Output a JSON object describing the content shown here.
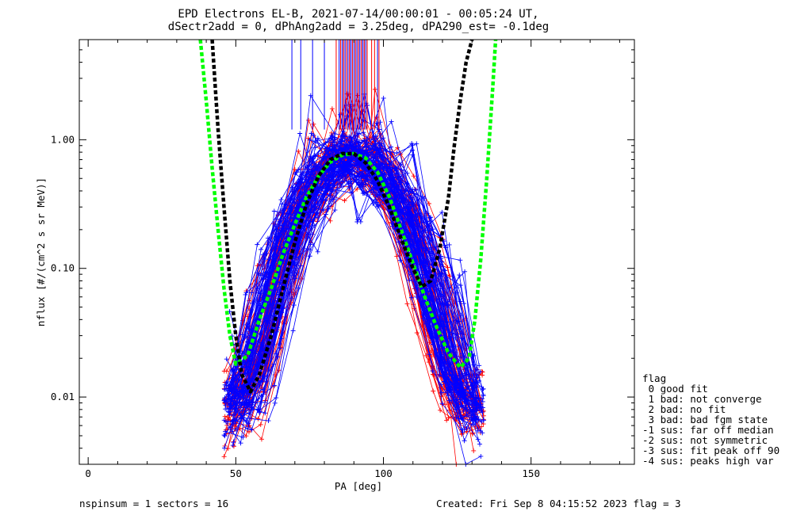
{
  "title_lines": [
    "EPD Electrons EL-B, 2021-07-14/00:00:01 - 00:05:24 UT,",
    "dSectr2add = 0, dPhAng2add = 3.25deg, dPA290_est=  -0.1deg"
  ],
  "footer_left": "nspinsum =  1  sectors = 16",
  "footer_right": "Created: Fri Sep  8 04:15:52 2023   flag = 3",
  "legend": {
    "title": "flag",
    "items": [
      " 0 good fit",
      " 1 bad: not converge",
      " 2 bad: no fit",
      " 3 bad: bad fgm state",
      "-1 sus: far off median",
      "-2 sus: not symmetric",
      "-3 sus: fit peak off 90",
      "-4 sus: peaks high var"
    ]
  },
  "colors": {
    "omni": "#0000ff",
    "para": "#ff0000",
    "fit_green": "#00ff00",
    "fit_black": "#000000"
  },
  "chart_data": {
    "type": "line",
    "title": "EPD Electrons EL-B, 2021-07-14/00:00:01 - 00:05:24 UT, dSectr2add = 0, dPhAng2add = 3.25deg, dPA290_est=  -0.1deg",
    "xlabel": "PA [deg]",
    "ylabel": "nflux [#/(cm^2 s sr MeV)]",
    "xlim": [
      -3,
      185
    ],
    "ylim": [
      0.003,
      6
    ],
    "yscale": "log",
    "x_ticks": [
      0,
      50,
      100,
      150
    ],
    "y_ticks": [
      0.01,
      0.1,
      1.0
    ],
    "y_tick_labels": [
      "0.01",
      "0.10",
      "1.00"
    ],
    "legend_placement": "right",
    "series": [
      {
        "color": "#00ff00",
        "style": "dashed",
        "x": [
          38,
          40,
          42,
          44,
          46,
          48,
          50,
          54,
          58,
          62,
          66,
          70,
          74,
          78,
          82,
          86,
          90,
          94,
          98,
          102,
          106,
          110,
          114,
          118,
          122,
          126,
          129,
          131,
          133,
          135,
          137,
          138
        ],
        "y": [
          6,
          2.0,
          0.6,
          0.2,
          0.07,
          0.03,
          0.018,
          0.021,
          0.04,
          0.07,
          0.13,
          0.22,
          0.36,
          0.52,
          0.67,
          0.76,
          0.78,
          0.72,
          0.56,
          0.36,
          0.2,
          0.11,
          0.06,
          0.035,
          0.022,
          0.017,
          0.02,
          0.04,
          0.12,
          0.5,
          2.5,
          6
        ]
      },
      {
        "color": "#000000",
        "style": "dashed",
        "x": [
          42,
          44,
          46,
          48,
          50,
          52,
          55,
          58,
          62,
          66,
          70,
          74,
          78,
          82,
          86,
          90,
          94,
          98,
          102,
          106,
          110,
          113,
          116,
          119,
          122,
          124,
          126,
          128,
          130
        ],
        "y": [
          6,
          1.2,
          0.3,
          0.08,
          0.03,
          0.015,
          0.011,
          0.015,
          0.03,
          0.07,
          0.16,
          0.32,
          0.52,
          0.7,
          0.78,
          0.78,
          0.66,
          0.48,
          0.3,
          0.17,
          0.1,
          0.072,
          0.08,
          0.14,
          0.35,
          0.9,
          2.0,
          4.0,
          6
        ]
      }
    ],
    "vertical_markers": {
      "blue_x": [
        69,
        72,
        76,
        80,
        85,
        86,
        86.5,
        87,
        87.5,
        88,
        88.5,
        89,
        89.5,
        90,
        90.5,
        91,
        91.5,
        92,
        92.5,
        93,
        93.5,
        94,
        98
      ],
      "red_x": [
        84,
        85.5,
        86.5,
        87.5,
        88.5,
        89.5,
        90.5,
        91.5,
        92.5,
        93.5,
        94.5,
        96,
        97,
        98.5
      ],
      "y_range": [
        1.2,
        6
      ]
    },
    "scatter_curves": {
      "blue_count": 90,
      "red_count": 60,
      "pa_range": [
        48,
        132
      ],
      "peak_pa": 90,
      "peak_value": 0.78,
      "tail_value": 0.007
    }
  }
}
